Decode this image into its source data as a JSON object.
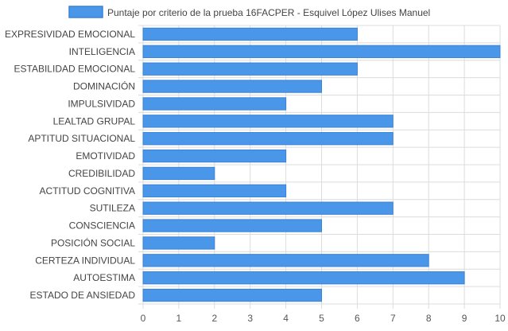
{
  "chart_data": {
    "type": "bar",
    "orientation": "horizontal",
    "title": "",
    "xlabel": "",
    "ylabel": "",
    "xlim": [
      0,
      10
    ],
    "x_ticks": [
      0,
      1,
      2,
      3,
      4,
      5,
      6,
      7,
      8,
      9,
      10
    ],
    "grid": true,
    "legend_position": "top",
    "categories": [
      "EXPRESIVIDAD EMOCIONAL",
      "INTELIGENCIA",
      "ESTABILIDAD EMOCIONAL",
      "DOMINACIÓN",
      "IMPULSIVIDAD",
      "LEALTAD GRUPAL",
      "APTITUD SITUACIONAL",
      "EMOTIVIDAD",
      "CREDIBILIDAD",
      "ACTITUD COGNITIVA",
      "SUTILEZA",
      "CONSCIENCIA",
      "POSICIÓN SOCIAL",
      "CERTEZA INDIVIDUAL",
      "AUTOESTIMA",
      "ESTADO DE ANSIEDAD"
    ],
    "series": [
      {
        "name": "Puntaje por criterio de la prueba 16FACPER - Esquivel López Ulises Manuel",
        "color": "#4a96e8",
        "border_color": "#3b82d9",
        "values": [
          6,
          10,
          6,
          5,
          4,
          7,
          7,
          4,
          2,
          4,
          7,
          5,
          2,
          8,
          9,
          5
        ]
      }
    ]
  },
  "colors": {
    "grid": "#dcdcdc",
    "axis_text": "#555555",
    "label_text": "#444444"
  }
}
